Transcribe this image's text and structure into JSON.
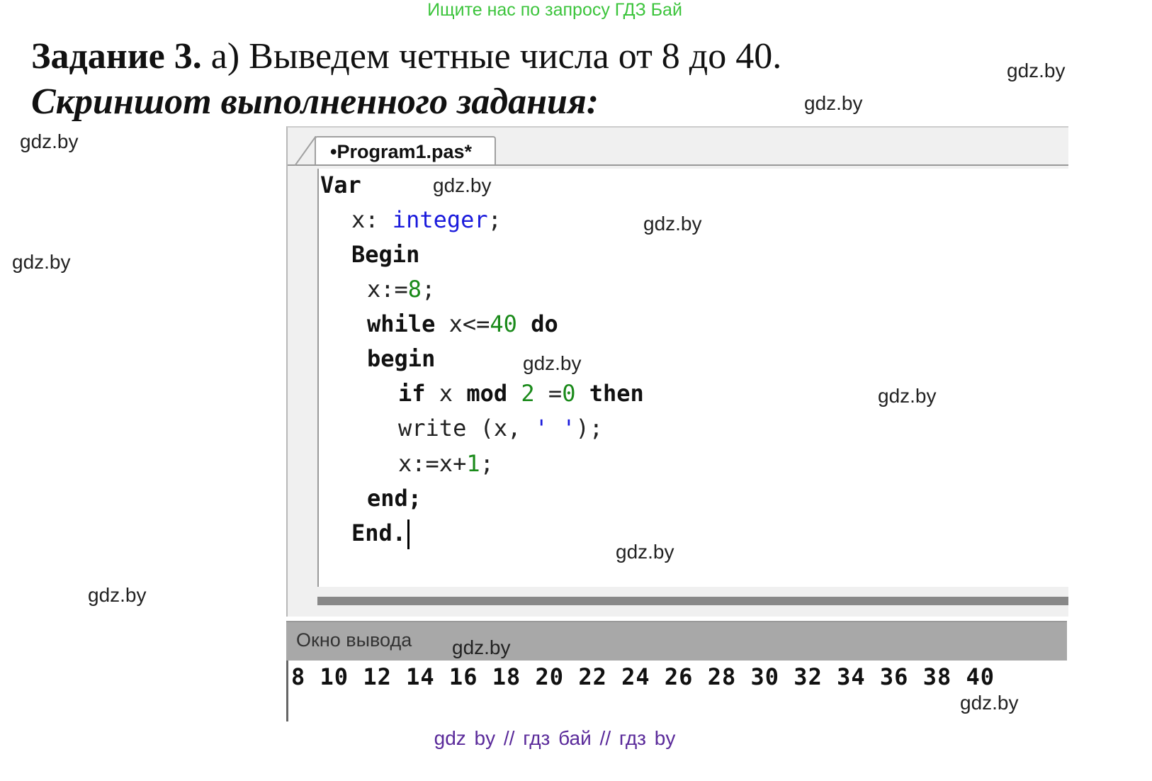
{
  "banner": "Ищите нас по запросу ГДЗ Бай",
  "task": {
    "label": "Задание 3.",
    "text": " а) Выведем четные числа от 8 до 40.",
    "subtitle": "Скриншот выполненного задания:"
  },
  "editor": {
    "tab_label": "•Program1.pas*",
    "code": {
      "l1": "Var",
      "l2_a": "x: ",
      "l2_b": "integer",
      "l2_c": ";",
      "l3": "Begin",
      "l4_a": "x:=",
      "l4_b": "8",
      "l4_c": ";",
      "l5_a": "while",
      "l5_b": " x<=",
      "l5_c": "40",
      "l5_d": " ",
      "l5_e": "do",
      "l6": "begin",
      "l7_a": "if",
      "l7_b": " x ",
      "l7_c": "mod",
      "l7_d": " ",
      "l7_e": "2",
      "l7_f": " =",
      "l7_g": "0",
      "l7_h": " ",
      "l7_i": "then",
      "l8_a": "write (x, ",
      "l8_b": "' '",
      "l8_c": ");",
      "l9_a": "x:=x+",
      "l9_b": "1",
      "l9_c": ";",
      "l10": "end;",
      "l11": "End."
    },
    "colors": {
      "keyword": "#111111",
      "type": "#1a1adc",
      "number": "#1a8a1a",
      "string": "#1a1adc"
    }
  },
  "output": {
    "label": "Окно вывода",
    "text": "8 10 12 14 16 18 20 22 24 26 28 30 32 34 36 38 40"
  },
  "watermarks": [
    "gdz.by",
    "gdz.by",
    "gdz.by",
    "gdz.by",
    "gdz.by",
    "gdz.by",
    "gdz.by",
    "gdz.by",
    "gdz.by",
    "gdz.by",
    "gdz.by",
    "gdz.by"
  ],
  "footer": "gdz by  //  гдз бай  //  гдз by"
}
